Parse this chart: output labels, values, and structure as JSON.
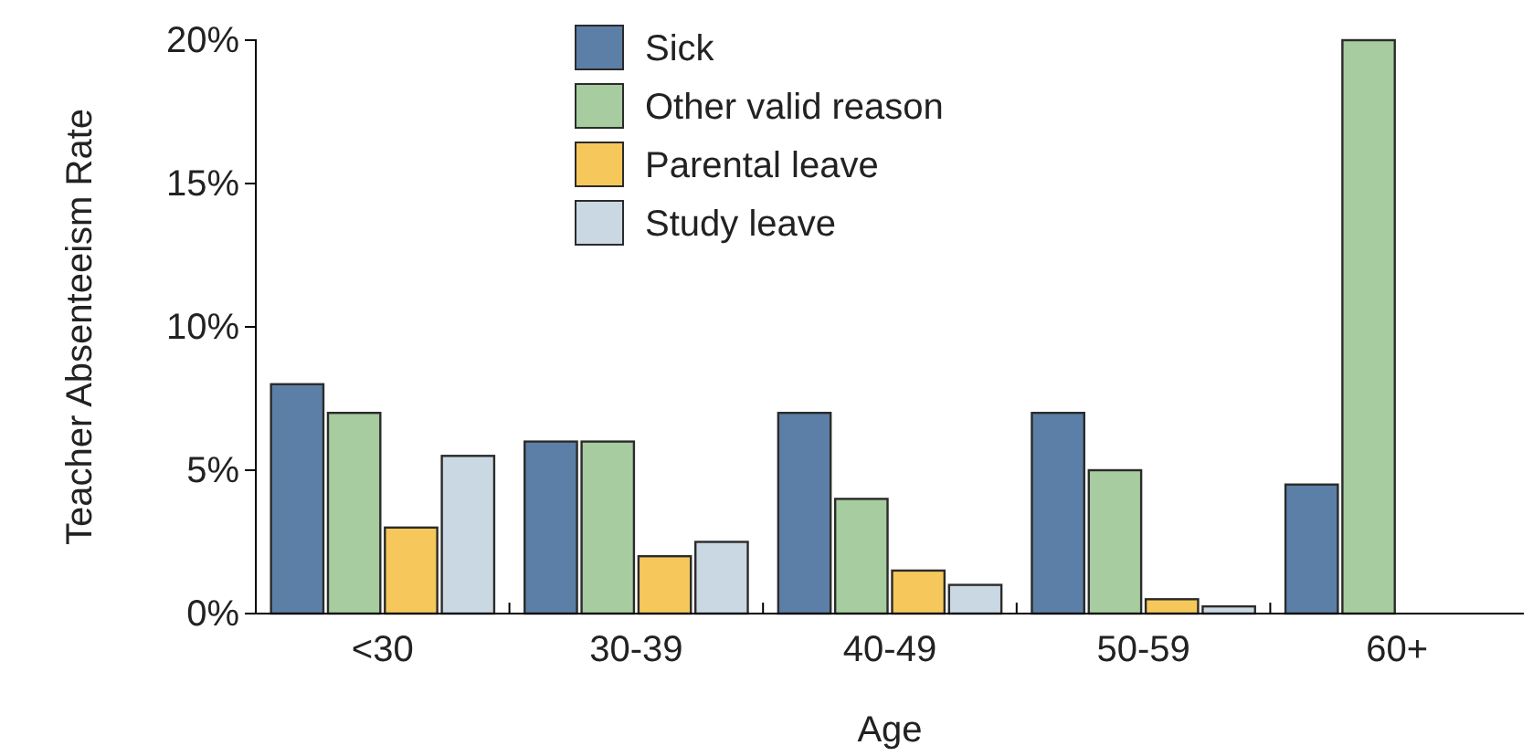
{
  "chart_data": {
    "type": "bar",
    "xlabel": "Age",
    "ylabel": "Teacher Absenteeism Rate",
    "categories": [
      "<30",
      "30-39",
      "40-49",
      "50-59",
      "60+"
    ],
    "series": [
      {
        "name": "Sick",
        "color": "#5b7fa6",
        "values": [
          8,
          6,
          7,
          7,
          4.5
        ]
      },
      {
        "name": "Other valid reason",
        "color": "#a6cc9f",
        "values": [
          7,
          6,
          4,
          5,
          20
        ]
      },
      {
        "name": "Parental leave",
        "color": "#f6c85b",
        "values": [
          3,
          2,
          1.5,
          0.5,
          null
        ]
      },
      {
        "name": "Study leave",
        "color": "#c9d8e2",
        "values": [
          5.5,
          2.5,
          1,
          0.25,
          null
        ]
      }
    ],
    "ylim": [
      0,
      20
    ],
    "yticks": [
      {
        "value": 0,
        "label": "0%"
      },
      {
        "value": 5,
        "label": "5%"
      },
      {
        "value": 10,
        "label": "10%"
      },
      {
        "value": 15,
        "label": "15%"
      },
      {
        "value": 20,
        "label": "20%"
      }
    ],
    "grid": false,
    "legend": "top"
  }
}
